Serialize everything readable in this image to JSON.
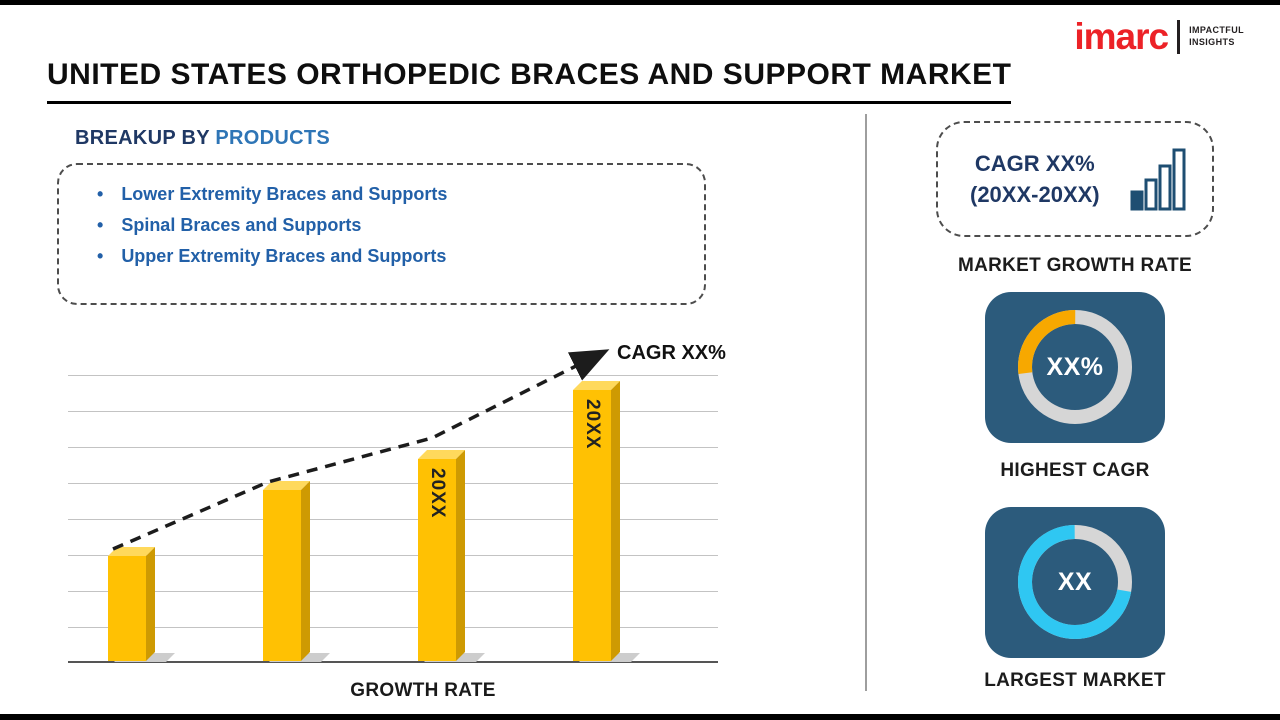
{
  "page": {
    "title": "UNITED STATES ORTHOPEDIC BRACES AND SUPPORT MARKET"
  },
  "logo": {
    "brand": "imarc",
    "tagline_line1": "IMPACTFUL",
    "tagline_line2": "INSIGHTS"
  },
  "breakup": {
    "heading_prefix": "BREAKUP BY ",
    "heading_highlight": "PRODUCTS",
    "bullet": "•",
    "items": [
      "Lower Extremity Braces and Supports",
      "Spinal Braces and Supports",
      "Upper Extremity Braces and Supports"
    ]
  },
  "growth_chart": {
    "arrow_label": "CAGR XX%",
    "axis_label": "GROWTH RATE",
    "bar_labels": [
      "",
      "",
      "20XX",
      "20XX"
    ]
  },
  "right_panel": {
    "cagr_box": {
      "line1": "CAGR XX%",
      "line2": "(20XX-20XX)"
    },
    "market_growth_rate_label": "MARKET GROWTH RATE",
    "highest_cagr": {
      "value": "XX%",
      "label": "HIGHEST CAGR"
    },
    "largest_market": {
      "value": "XX",
      "label": "LARGEST MARKET"
    }
  },
  "colors": {
    "navy_text": "#1F3864",
    "highlight_blue": "#2E75B6",
    "list_blue": "#2260A8",
    "bar_yellow": "#FFC103",
    "donut_yellow": "#F7A800",
    "donut_cyan": "#2FC7F2",
    "donut_gray": "#D6D6D6",
    "card_background": "#2C5B7C",
    "logo_red": "#EC2227"
  },
  "chart_data": [
    {
      "type": "bar",
      "categories": [
        "",
        "",
        "20XX",
        "20XX"
      ],
      "values": [
        37,
        60,
        71,
        95
      ],
      "value_note": "illustrative heights, percent of plot height; axis unlabeled",
      "title": "",
      "xlabel": "GROWTH RATE",
      "ylabel": "",
      "grid": true,
      "bar_color": "#FFC103",
      "trend_annotation": "CAGR XX%"
    },
    {
      "type": "pie",
      "title": "HIGHEST CAGR",
      "labels": [
        "highlighted share",
        "remainder"
      ],
      "values": [
        27,
        73
      ],
      "center_label": "XX%",
      "colors": [
        "#F7A800",
        "#D6D6D6"
      ],
      "start_deg": 263
    },
    {
      "type": "pie",
      "title": "LARGEST MARKET",
      "labels": [
        "highlighted share",
        "remainder"
      ],
      "values": [
        72,
        28
      ],
      "center_label": "XX",
      "colors": [
        "#2FC7F2",
        "#D6D6D6"
      ],
      "start_deg": 100
    }
  ]
}
